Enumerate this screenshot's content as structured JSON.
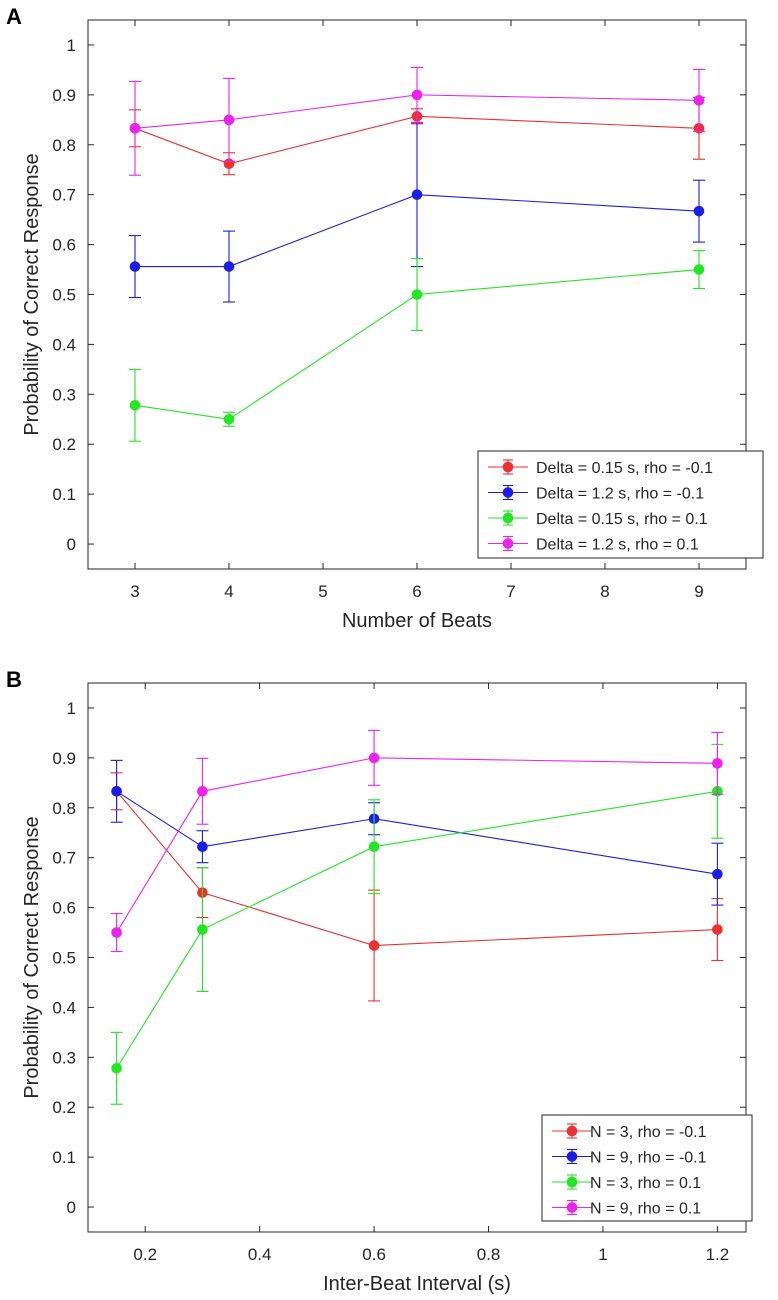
{
  "chart_data": [
    {
      "panel_label": "A",
      "type": "line",
      "xlabel": "Number of Beats",
      "ylabel": "Probability of Correct Response",
      "xlim": [
        2.5,
        9.5
      ],
      "ylim": [
        -0.05,
        1.05
      ],
      "xticks": [
        3,
        4,
        5,
        6,
        7,
        8,
        9
      ],
      "yticks": [
        0,
        0.1,
        0.2,
        0.3,
        0.4,
        0.5,
        0.6,
        0.7,
        0.8,
        0.9,
        1
      ],
      "xtick_labels": [
        "3",
        "4",
        "5",
        "6",
        "7",
        "8",
        "9"
      ],
      "ytick_labels": [
        "0",
        "0.1",
        "0.2",
        "0.3",
        "0.4",
        "0.5",
        "0.6",
        "0.7",
        "0.8",
        "0.9",
        "1"
      ],
      "legend_position": "bottom-right",
      "series": [
        {
          "name": "Delta = 0.15 s, rho = -0.1",
          "color": "#ee3030",
          "x": [
            3,
            4,
            6,
            9
          ],
          "values": [
            0.833,
            0.762,
            0.857,
            0.833
          ],
          "err_low": [
            0.037,
            0.022,
            0.015,
            0.062
          ],
          "err_high": [
            0.037,
            0.022,
            0.015,
            0.062
          ]
        },
        {
          "name": "Delta = 1.2 s, rho = -0.1",
          "color": "#1d1de8",
          "x": [
            3,
            4,
            6,
            9
          ],
          "values": [
            0.556,
            0.556,
            0.7,
            0.667
          ],
          "err_low": [
            0.062,
            0.071,
            0.144,
            0.062
          ],
          "err_high": [
            0.062,
            0.071,
            0.144,
            0.062
          ]
        },
        {
          "name": "Delta = 0.15 s, rho = 0.1",
          "color": "#22e622",
          "x": [
            3,
            4,
            6,
            9
          ],
          "values": [
            0.278,
            0.25,
            0.5,
            0.55
          ],
          "err_low": [
            0.072,
            0.014,
            0.072,
            0.038
          ],
          "err_high": [
            0.072,
            0.014,
            0.072,
            0.038
          ]
        },
        {
          "name": "Delta = 1.2 s, rho = 0.1",
          "color": "#ee22ee",
          "x": [
            3,
            4,
            6,
            9
          ],
          "values": [
            0.833,
            0.85,
            0.9,
            0.889
          ],
          "err_low": [
            0.094,
            0.083,
            0.055,
            0.062
          ],
          "err_high": [
            0.094,
            0.083,
            0.055,
            0.062
          ]
        }
      ]
    },
    {
      "panel_label": "B",
      "type": "line",
      "xlabel": "Inter-Beat Interval (s)",
      "ylabel": "Probability of Correct Response",
      "xlim": [
        0.1,
        1.25
      ],
      "ylim": [
        -0.05,
        1.05
      ],
      "xticks": [
        0.2,
        0.4,
        0.6,
        0.8,
        1,
        1.2
      ],
      "yticks": [
        0,
        0.1,
        0.2,
        0.3,
        0.4,
        0.5,
        0.6,
        0.7,
        0.8,
        0.9,
        1
      ],
      "xtick_labels": [
        "0.2",
        "0.4",
        "0.6",
        "0.8",
        "1",
        "1.2"
      ],
      "ytick_labels": [
        "0",
        "0.1",
        "0.2",
        "0.3",
        "0.4",
        "0.5",
        "0.6",
        "0.7",
        "0.8",
        "0.9",
        "1"
      ],
      "legend_position": "bottom-right",
      "series": [
        {
          "name": "N = 3, rho = -0.1",
          "color": "#ee3030",
          "x": [
            0.15,
            0.3,
            0.6,
            1.2
          ],
          "values": [
            0.833,
            0.63,
            0.524,
            0.556
          ],
          "err_low": [
            0.037,
            0.05,
            0.111,
            0.062
          ],
          "err_high": [
            0.037,
            0.05,
            0.111,
            0.062
          ]
        },
        {
          "name": "N = 9, rho = -0.1",
          "color": "#1d1de8",
          "x": [
            0.15,
            0.3,
            0.6,
            1.2
          ],
          "values": [
            0.833,
            0.722,
            0.778,
            0.667
          ],
          "err_low": [
            0.062,
            0.032,
            0.032,
            0.062
          ],
          "err_high": [
            0.062,
            0.032,
            0.032,
            0.062
          ]
        },
        {
          "name": "N = 3, rho = 0.1",
          "color": "#22e622",
          "x": [
            0.15,
            0.3,
            0.6,
            1.2
          ],
          "values": [
            0.278,
            0.556,
            0.722,
            0.833
          ],
          "err_low": [
            0.072,
            0.124,
            0.094,
            0.094
          ],
          "err_high": [
            0.072,
            0.124,
            0.094,
            0.094
          ]
        },
        {
          "name": "N = 9, rho = 0.1",
          "color": "#ee22ee",
          "x": [
            0.15,
            0.3,
            0.6,
            1.2
          ],
          "values": [
            0.55,
            0.833,
            0.9,
            0.889
          ],
          "err_low": [
            0.038,
            0.066,
            0.055,
            0.062
          ],
          "err_high": [
            0.038,
            0.066,
            0.055,
            0.062
          ]
        }
      ]
    }
  ]
}
